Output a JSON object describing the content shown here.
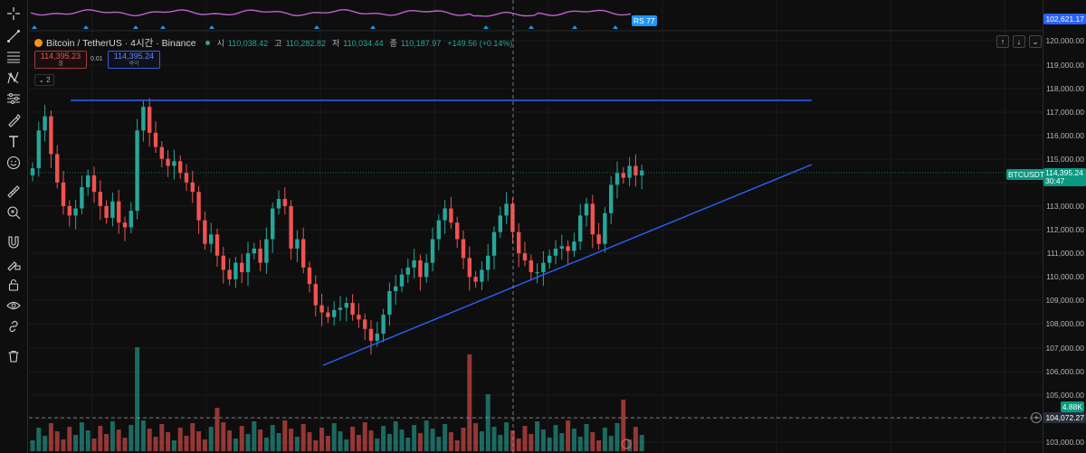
{
  "symbol": {
    "title": "Bitcoin / TetherUS · 4시간 · Binance",
    "ohlc": [
      {
        "k": "시",
        "v": "110,038.42"
      },
      {
        "k": "고",
        "v": "110,282.82"
      },
      {
        "k": "저",
        "v": "110,034.44"
      },
      {
        "k": "종",
        "v": "110,187.97"
      }
    ],
    "change": "+149.56 (+0.14%)"
  },
  "trade": {
    "sell_price": "114,395.23",
    "sell_label": "셀",
    "spread": "0.01",
    "buy_price": "114,395.24",
    "buy_label": "바이"
  },
  "indicators_count": "2",
  "rsi_label": "RS 77",
  "price_axis": {
    "ticks": [
      "120,000.00",
      "119,000.00",
      "118,000.00",
      "117,000.00",
      "116,000.00",
      "115,000.00",
      "113,000.00",
      "112,000.00",
      "111,000.00",
      "110,000.00",
      "109,000.00",
      "108,000.00",
      "107,000.00",
      "106,000.00",
      "105,000.00",
      "103,000.00"
    ],
    "indicator_value": "102,621.17",
    "symbol_tag": "BTCUSDT",
    "current_price": "114,395.24",
    "countdown": "30:47",
    "volume_tag": "4.88K",
    "crosshair_price": "104,072.27"
  },
  "colors": {
    "up": "#26a69a",
    "down": "#ef5350",
    "trendline": "#2962ff",
    "rsi_line": "#c060d0",
    "background": "#0e0e0e"
  },
  "tools": [
    "crosshair-icon",
    "trendline-icon",
    "fib-icon",
    "pattern-icon",
    "measure-settings-icon",
    "brush-icon",
    "text-icon",
    "emoji-icon",
    "ruler-icon",
    "zoom-in-icon",
    "magnet-icon",
    "lock-draw-icon",
    "lock-icon",
    "eye-icon",
    "link-icon",
    "trash-icon"
  ]
}
